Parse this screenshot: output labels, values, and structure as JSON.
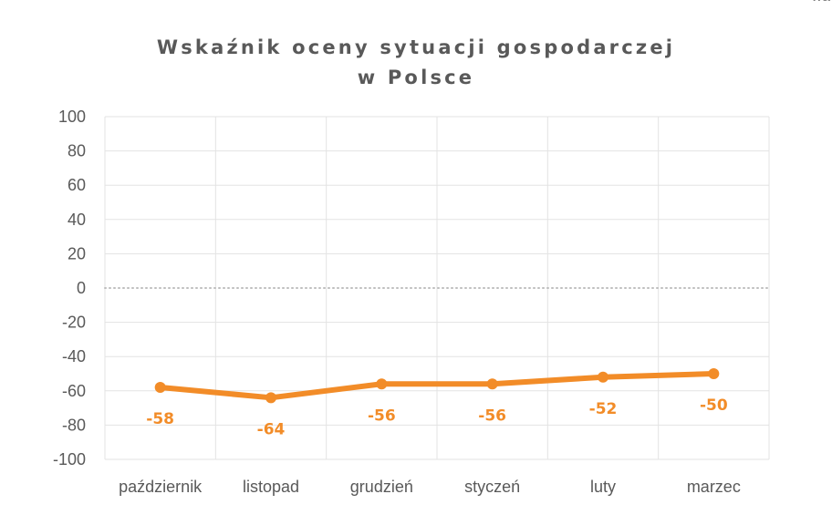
{
  "corner_text": "wa",
  "chart_data": {
    "type": "line",
    "title": [
      "Wskaźnik oceny sytuacji gospodarczej",
      "w Polsce"
    ],
    "categories": [
      "październik",
      "listopad",
      "grudzień",
      "styczeń",
      "luty",
      "marzec"
    ],
    "series": [
      {
        "values": [
          -58,
          -64,
          -56,
          -56,
          -52,
          -50
        ],
        "color": "#f28c28"
      }
    ],
    "data_labels": [
      "-58",
      "-64",
      "-56",
      "-56",
      "-52",
      "-50"
    ],
    "ylim": [
      -100,
      100
    ],
    "yticks": [
      100,
      80,
      60,
      40,
      20,
      0,
      -20,
      -40,
      -60,
      -80,
      -100
    ],
    "ytick_labels": [
      "100",
      "80",
      "60",
      "40",
      "20",
      "0",
      "-20",
      "-40",
      "-60",
      "-80",
      "-100"
    ],
    "grid": true,
    "zero_line": "dotted",
    "legend": "none"
  }
}
